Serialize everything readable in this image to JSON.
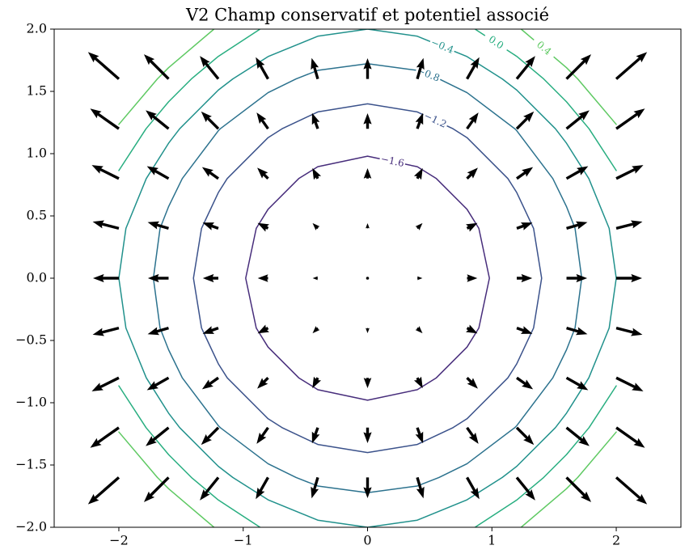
{
  "chart_data": {
    "type": "quiver-contour",
    "title": "V2 Champ conservatif et potentiel associé",
    "xlim": [
      -2.52,
      2.52
    ],
    "ylim": [
      -2,
      2
    ],
    "xticks": [
      {
        "value": -2,
        "label": "−2"
      },
      {
        "value": -1,
        "label": "−1"
      },
      0,
      1,
      2
    ],
    "yticks": [
      {
        "value": -2,
        "label": "−2.0"
      },
      {
        "value": -1.5,
        "label": "−1.5"
      },
      {
        "value": -1,
        "label": "−1.0"
      },
      {
        "value": -0.5,
        "label": "−0.5"
      },
      {
        "value": 0,
        "label": "0.0"
      },
      {
        "value": 0.5,
        "label": "0.5"
      },
      {
        "value": 1,
        "label": "1.0"
      },
      {
        "value": 1.5,
        "label": "1.5"
      },
      {
        "value": 2,
        "label": "2.0"
      }
    ],
    "contour": {
      "x": [
        -2,
        -1.6,
        -1.2,
        -0.8,
        -0.4,
        0,
        0.4,
        0.8,
        1.2,
        1.6,
        2
      ],
      "y": [
        -2,
        -1.6,
        -1.2,
        -0.8,
        -0.4,
        0,
        0.4,
        0.8,
        1.2,
        1.6,
        2
      ],
      "z": [
        [
          1.68,
          0.931,
          0.349,
          -0.067,
          -0.317,
          -0.4,
          -0.317,
          -0.067,
          0.349,
          0.931,
          1.68
        ],
        [
          0.931,
          0.245,
          -0.289,
          -0.671,
          -0.9,
          -0.976,
          -0.9,
          -0.671,
          -0.289,
          0.245,
          0.931
        ],
        [
          0.349,
          -0.289,
          -0.786,
          -1.14,
          -1.353,
          -1.424,
          -1.353,
          -1.14,
          -0.786,
          -0.289,
          0.349
        ],
        [
          -0.067,
          -0.671,
          -1.14,
          -1.476,
          -1.677,
          -1.744,
          -1.677,
          -1.476,
          -1.14,
          -0.671,
          -0.067
        ],
        [
          -0.317,
          -0.9,
          -1.353,
          -1.677,
          -1.871,
          -1.936,
          -1.871,
          -1.677,
          -1.353,
          -0.9,
          -0.317
        ],
        [
          -0.4,
          -0.976,
          -1.424,
          -1.744,
          -1.936,
          -2,
          -1.936,
          -1.744,
          -1.424,
          -0.976,
          -0.4
        ],
        [
          -0.317,
          -0.9,
          -1.353,
          -1.677,
          -1.871,
          -1.936,
          -1.871,
          -1.677,
          -1.353,
          -0.9,
          -0.317
        ],
        [
          -0.067,
          -0.671,
          -1.14,
          -1.476,
          -1.677,
          -1.744,
          -1.677,
          -1.476,
          -1.14,
          -0.671,
          -0.067
        ],
        [
          0.349,
          -0.289,
          -0.786,
          -1.14,
          -1.353,
          -1.424,
          -1.353,
          -1.14,
          -0.786,
          -0.289,
          0.349
        ],
        [
          0.931,
          0.245,
          -0.289,
          -0.671,
          -0.9,
          -0.976,
          -0.9,
          -0.671,
          -0.289,
          0.245,
          0.931
        ],
        [
          1.68,
          0.931,
          0.349,
          -0.067,
          -0.317,
          -0.4,
          -0.317,
          -0.067,
          0.349,
          0.931,
          1.68
        ]
      ],
      "levels": [
        {
          "value": -1.6,
          "label": "−1.6",
          "color": "#472d7b"
        },
        {
          "value": -1.2,
          "label": "−1.2",
          "color": "#3b528b"
        },
        {
          "value": -0.8,
          "label": "−0.8",
          "color": "#2c728e"
        },
        {
          "value": -0.4,
          "label": "−0.4",
          "color": "#21918c"
        },
        {
          "value": 0,
          "label": "0.0",
          "color": "#28ae80"
        },
        {
          "value": 0.4,
          "label": "0.4",
          "color": "#5ec962"
        }
      ]
    },
    "quiver": {
      "color": "#000000",
      "x": [
        -2,
        -1.6,
        -1.2,
        -0.8,
        -0.4,
        0,
        0.4,
        0.8,
        1.2,
        1.6,
        2
      ],
      "y": [
        -1.6,
        -1.2,
        -0.8,
        -0.4,
        0,
        0.4,
        0.8,
        1.2,
        1.6
      ],
      "u": [
        [
          -1.907,
          -1.526,
          -1.144,
          -0.763,
          -0.381,
          0,
          0.381,
          0.763,
          1.144,
          1.526,
          1.907
        ],
        [
          -1.773,
          -1.418,
          -1.064,
          -0.709,
          -0.355,
          0,
          0.355,
          0.709,
          1.064,
          1.418,
          1.773
        ],
        [
          -1.677,
          -1.341,
          -1.006,
          -0.671,
          -0.335,
          0,
          0.335,
          0.671,
          1.006,
          1.341,
          1.677
        ],
        [
          -1.619,
          -1.295,
          -0.972,
          -0.648,
          -0.324,
          0,
          0.324,
          0.648,
          0.972,
          1.295,
          1.619
        ],
        [
          -1.6,
          -1.28,
          -0.96,
          -0.64,
          -0.32,
          0,
          0.32,
          0.64,
          0.96,
          1.28,
          1.6
        ],
        [
          -1.619,
          -1.295,
          -0.972,
          -0.648,
          -0.324,
          0,
          0.324,
          0.648,
          0.972,
          1.295,
          1.619
        ],
        [
          -1.677,
          -1.341,
          -1.006,
          -0.671,
          -0.335,
          0,
          0.335,
          0.671,
          1.006,
          1.341,
          1.677
        ],
        [
          -1.773,
          -1.418,
          -1.064,
          -0.709,
          -0.355,
          0,
          0.355,
          0.709,
          1.064,
          1.418,
          1.773
        ],
        [
          -1.907,
          -1.526,
          -1.144,
          -0.763,
          -0.381,
          0,
          0.381,
          0.763,
          1.144,
          1.526,
          1.907
        ]
      ],
      "v": [
        [
          -1.664,
          -1.526,
          -1.418,
          -1.341,
          -1.295,
          -1.28,
          -1.295,
          -1.341,
          -1.418,
          -1.526,
          -1.664
        ],
        [
          -1.248,
          -1.144,
          -1.064,
          -1.006,
          -0.972,
          -0.96,
          -0.972,
          -1.006,
          -1.064,
          -1.144,
          -1.248
        ],
        [
          -0.832,
          -0.763,
          -0.709,
          -0.671,
          -0.648,
          -0.64,
          -0.648,
          -0.671,
          -0.709,
          -0.763,
          -0.832
        ],
        [
          -0.416,
          -0.381,
          -0.355,
          -0.335,
          -0.324,
          -0.32,
          -0.324,
          -0.335,
          -0.355,
          -0.381,
          -0.416
        ],
        [
          0,
          0,
          0,
          0,
          0,
          0,
          0,
          0,
          0,
          0,
          0
        ],
        [
          0.416,
          0.381,
          0.355,
          0.335,
          0.324,
          0.32,
          0.324,
          0.335,
          0.355,
          0.381,
          0.416
        ],
        [
          0.832,
          0.763,
          0.709,
          0.671,
          0.648,
          0.64,
          0.648,
          0.671,
          0.709,
          0.763,
          0.832
        ],
        [
          1.248,
          1.144,
          1.064,
          1.006,
          0.972,
          0.96,
          0.972,
          1.006,
          1.064,
          1.144,
          1.248
        ],
        [
          1.664,
          1.526,
          1.418,
          1.341,
          1.295,
          1.28,
          1.295,
          1.341,
          1.418,
          1.526,
          1.664
        ]
      ]
    }
  }
}
